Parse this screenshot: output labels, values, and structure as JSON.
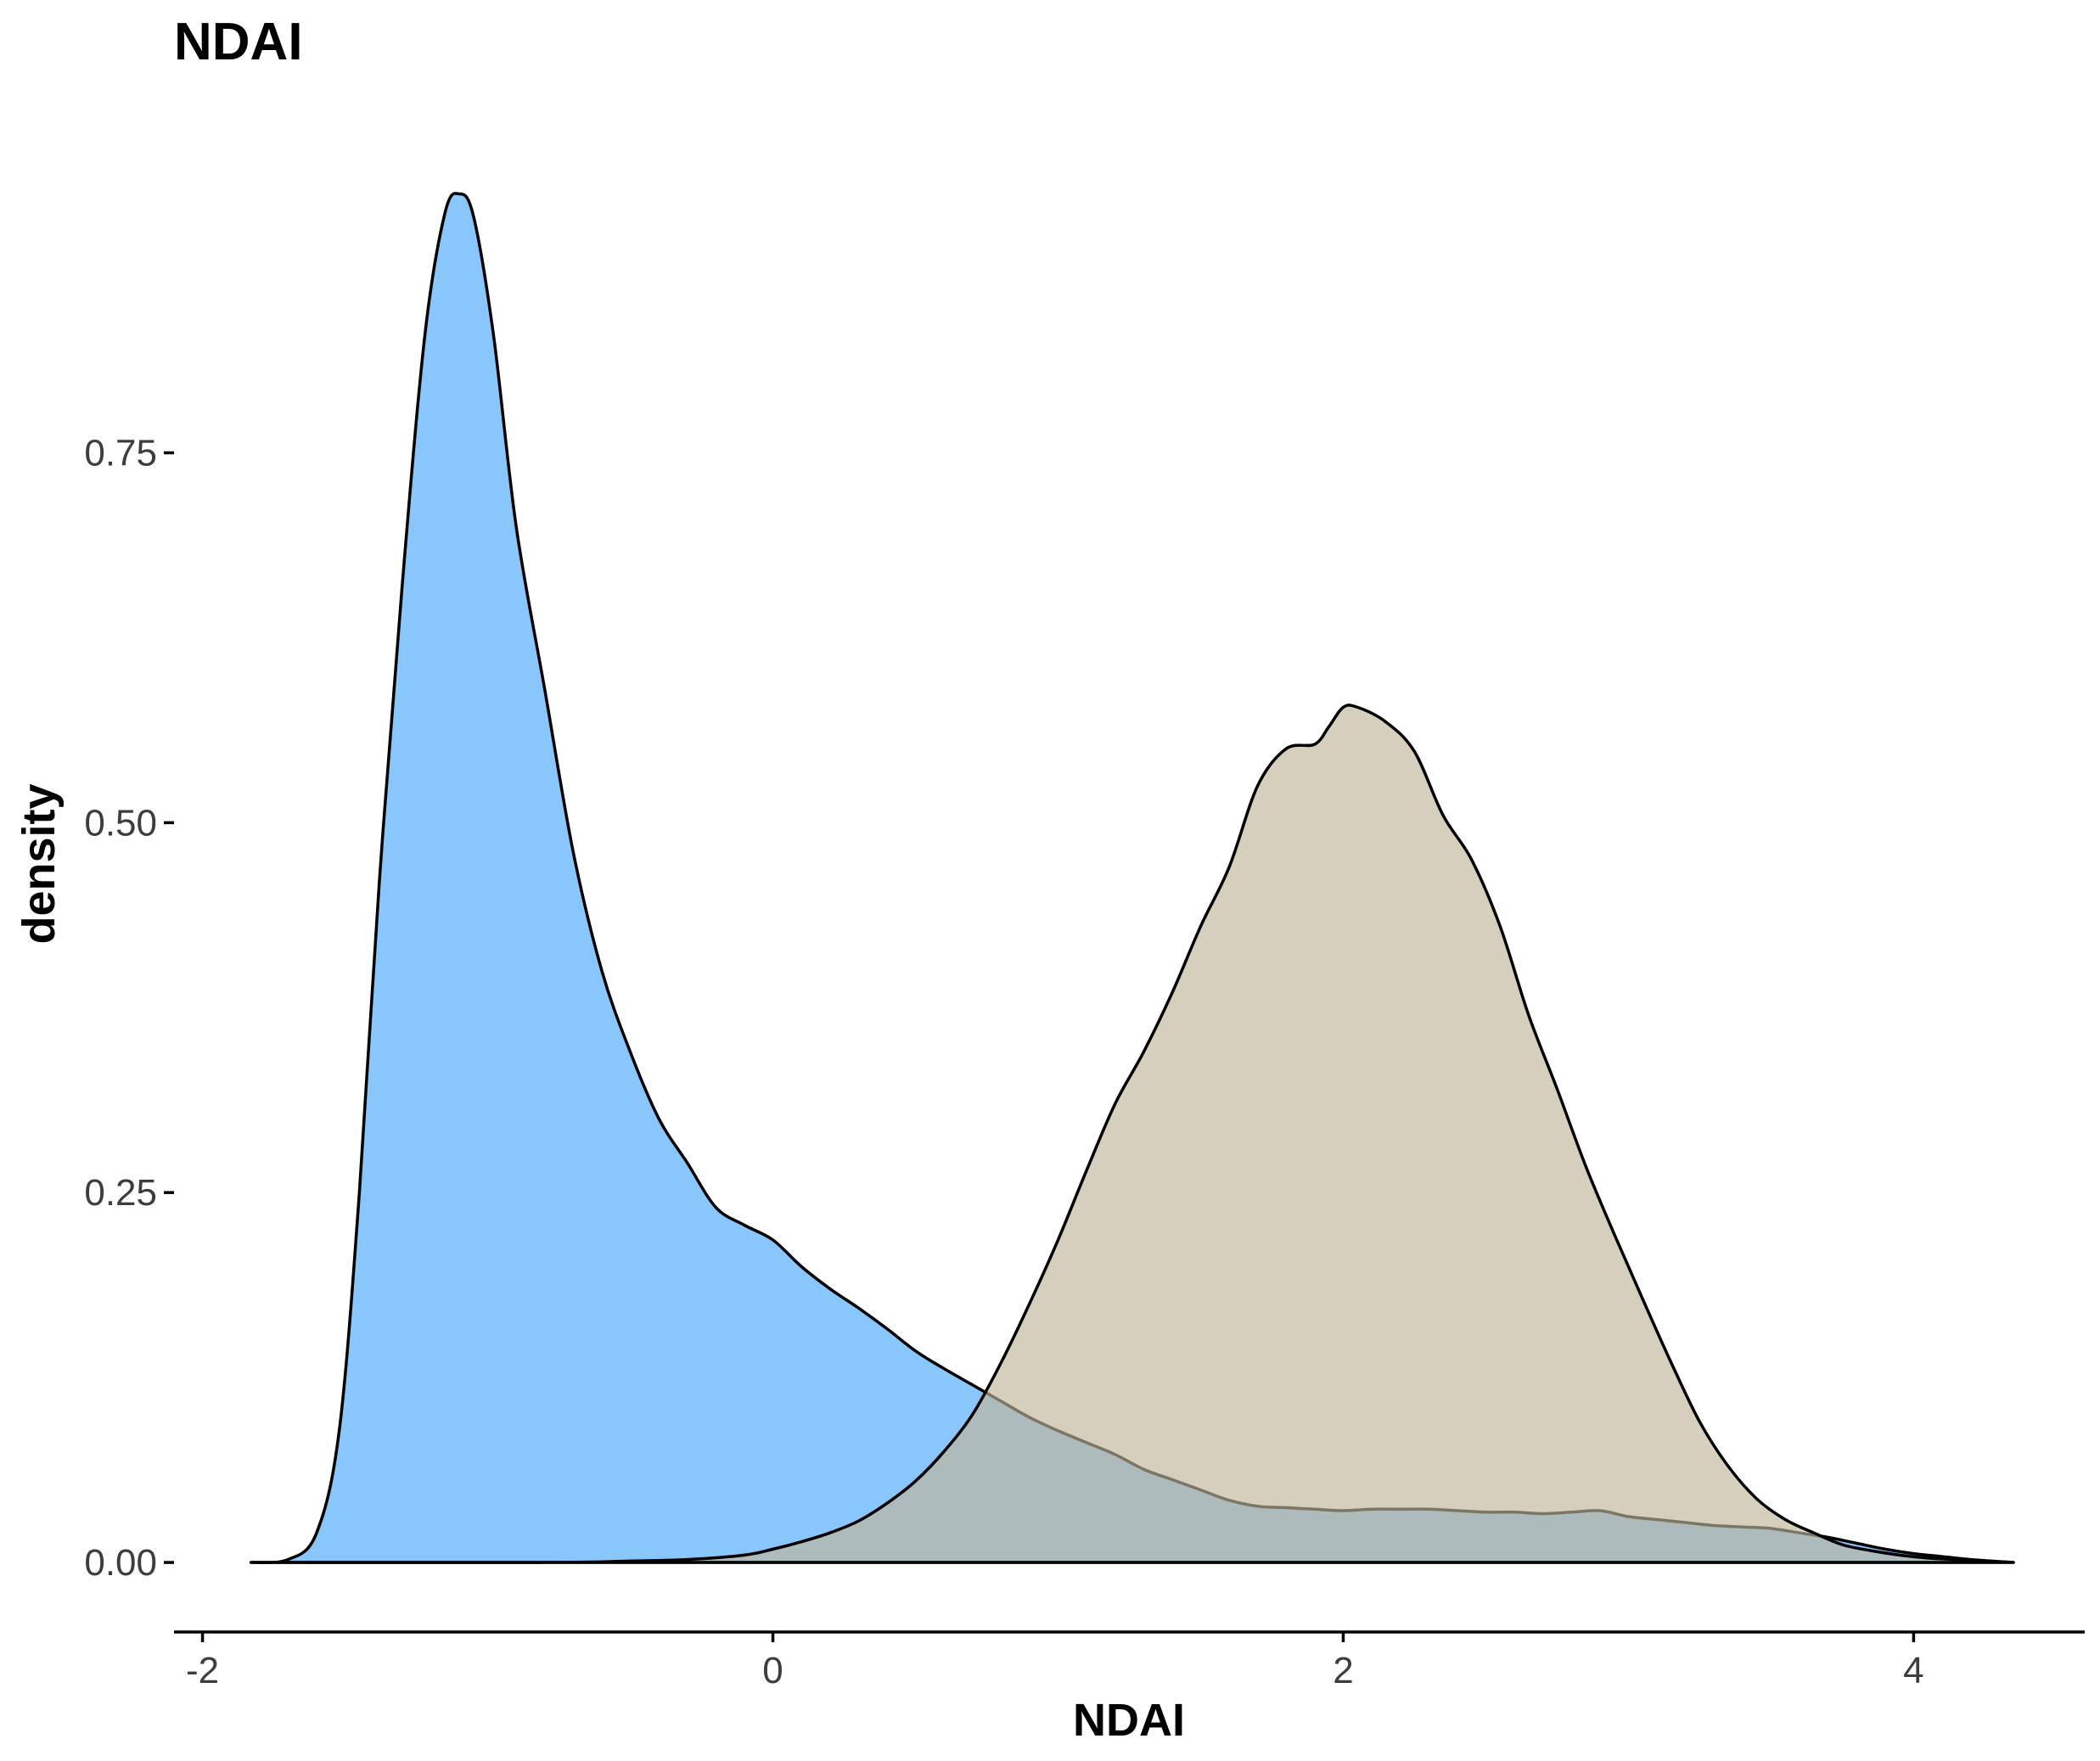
{
  "chart_data": {
    "type": "area",
    "title": "NDAI",
    "xlabel": "NDAI",
    "ylabel": "density",
    "xlim": [
      -2.1,
      4.6
    ],
    "ylim": [
      -0.047,
      0.97
    ],
    "x_ticks": [
      -2,
      0,
      2,
      4
    ],
    "x_tick_labels": [
      "-2",
      "0",
      "2",
      "4"
    ],
    "y_ticks": [
      0,
      0.25,
      0.5,
      0.75
    ],
    "y_tick_labels": [
      "0.00",
      "0.25",
      "0.50",
      "0.75"
    ],
    "grid": false,
    "legend": "none",
    "series": [
      {
        "color": "#89C6FC",
        "opacity": 1,
        "points": [
          [
            -1.83,
            0.0
          ],
          [
            -1.7,
            0.002
          ],
          [
            -1.6,
            0.02
          ],
          [
            -1.52,
            0.09
          ],
          [
            -1.45,
            0.25
          ],
          [
            -1.38,
            0.46
          ],
          [
            -1.3,
            0.66
          ],
          [
            -1.22,
            0.83
          ],
          [
            -1.15,
            0.912
          ],
          [
            -1.1,
            0.925
          ],
          [
            -1.05,
            0.91
          ],
          [
            -0.98,
            0.83
          ],
          [
            -0.9,
            0.7
          ],
          [
            -0.8,
            0.59
          ],
          [
            -0.7,
            0.48
          ],
          [
            -0.6,
            0.4
          ],
          [
            -0.5,
            0.345
          ],
          [
            -0.4,
            0.3
          ],
          [
            -0.3,
            0.27
          ],
          [
            -0.2,
            0.24
          ],
          [
            -0.1,
            0.228
          ],
          [
            0.0,
            0.218
          ],
          [
            0.1,
            0.2
          ],
          [
            0.2,
            0.185
          ],
          [
            0.3,
            0.172
          ],
          [
            0.4,
            0.158
          ],
          [
            0.5,
            0.143
          ],
          [
            0.6,
            0.131
          ],
          [
            0.7,
            0.12
          ],
          [
            0.8,
            0.109
          ],
          [
            0.9,
            0.098
          ],
          [
            1.0,
            0.089
          ],
          [
            1.1,
            0.081
          ],
          [
            1.2,
            0.073
          ],
          [
            1.3,
            0.063
          ],
          [
            1.4,
            0.056
          ],
          [
            1.5,
            0.049
          ],
          [
            1.6,
            0.042
          ],
          [
            1.7,
            0.038
          ],
          [
            1.8,
            0.037
          ],
          [
            1.9,
            0.036
          ],
          [
            2.0,
            0.035
          ],
          [
            2.1,
            0.036
          ],
          [
            2.2,
            0.036
          ],
          [
            2.3,
            0.036
          ],
          [
            2.4,
            0.035
          ],
          [
            2.5,
            0.034
          ],
          [
            2.6,
            0.034
          ],
          [
            2.7,
            0.033
          ],
          [
            2.8,
            0.034
          ],
          [
            2.9,
            0.035
          ],
          [
            3.0,
            0.031
          ],
          [
            3.1,
            0.029
          ],
          [
            3.2,
            0.027
          ],
          [
            3.3,
            0.025
          ],
          [
            3.4,
            0.024
          ],
          [
            3.5,
            0.023
          ],
          [
            3.6,
            0.02
          ],
          [
            3.7,
            0.017
          ],
          [
            3.8,
            0.013
          ],
          [
            3.9,
            0.009
          ],
          [
            4.0,
            0.006
          ],
          [
            4.1,
            0.004
          ],
          [
            4.2,
            0.002
          ],
          [
            4.35,
            0.0
          ]
        ]
      },
      {
        "color": "#C2B69A",
        "opacity": 0.65,
        "points": [
          [
            -1.83,
            0.0
          ],
          [
            -0.8,
            0.0
          ],
          [
            -0.5,
            0.001
          ],
          [
            -0.3,
            0.002
          ],
          [
            -0.1,
            0.005
          ],
          [
            0.0,
            0.009
          ],
          [
            0.1,
            0.014
          ],
          [
            0.2,
            0.02
          ],
          [
            0.3,
            0.028
          ],
          [
            0.4,
            0.04
          ],
          [
            0.5,
            0.055
          ],
          [
            0.6,
            0.075
          ],
          [
            0.7,
            0.1
          ],
          [
            0.8,
            0.135
          ],
          [
            0.9,
            0.175
          ],
          [
            1.0,
            0.218
          ],
          [
            1.1,
            0.265
          ],
          [
            1.2,
            0.31
          ],
          [
            1.3,
            0.345
          ],
          [
            1.4,
            0.385
          ],
          [
            1.5,
            0.43
          ],
          [
            1.6,
            0.47
          ],
          [
            1.7,
            0.525
          ],
          [
            1.8,
            0.55
          ],
          [
            1.9,
            0.553
          ],
          [
            1.95,
            0.565
          ],
          [
            2.0,
            0.578
          ],
          [
            2.05,
            0.578
          ],
          [
            2.15,
            0.568
          ],
          [
            2.25,
            0.548
          ],
          [
            2.35,
            0.505
          ],
          [
            2.45,
            0.475
          ],
          [
            2.55,
            0.43
          ],
          [
            2.65,
            0.37
          ],
          [
            2.75,
            0.32
          ],
          [
            2.85,
            0.268
          ],
          [
            2.95,
            0.222
          ],
          [
            3.05,
            0.178
          ],
          [
            3.15,
            0.135
          ],
          [
            3.25,
            0.095
          ],
          [
            3.35,
            0.065
          ],
          [
            3.45,
            0.043
          ],
          [
            3.55,
            0.029
          ],
          [
            3.65,
            0.02
          ],
          [
            3.75,
            0.012
          ],
          [
            3.85,
            0.008
          ],
          [
            3.95,
            0.005
          ],
          [
            4.05,
            0.003
          ],
          [
            4.15,
            0.002
          ],
          [
            4.35,
            0.0
          ]
        ]
      }
    ]
  }
}
